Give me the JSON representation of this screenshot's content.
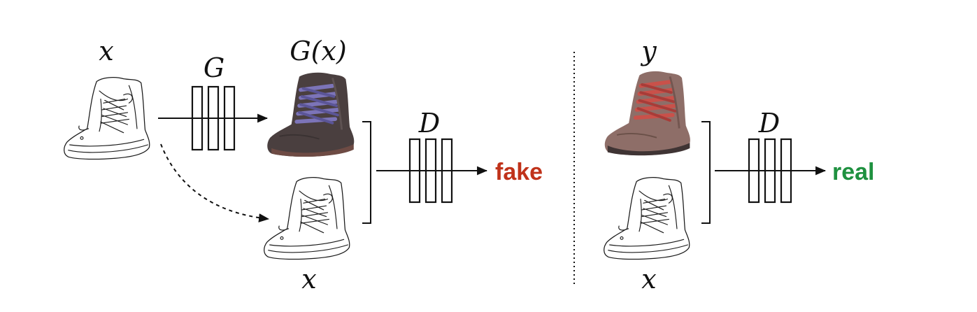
{
  "labels": {
    "input_x_top": "x",
    "generator": "G",
    "generated": "G(x)",
    "discriminator_left": "D",
    "input_x_bottom_left": "x",
    "target_y": "y",
    "discriminator_right": "D",
    "input_x_bottom_right": "x"
  },
  "outputs": {
    "fake": "fake",
    "real": "real"
  },
  "colors": {
    "fake": "#c0321a",
    "real": "#1f9140",
    "ink": "#111111",
    "generated_boot": "#4a3f3f",
    "generated_laces": "#7c74b8",
    "real_boot": "#8e6e68",
    "real_laces": "#c9514a"
  },
  "icons": {
    "sketch": "boot-edge-sketch-icon",
    "generated": "generated-boot-photo-icon",
    "real": "real-boot-photo-icon"
  }
}
